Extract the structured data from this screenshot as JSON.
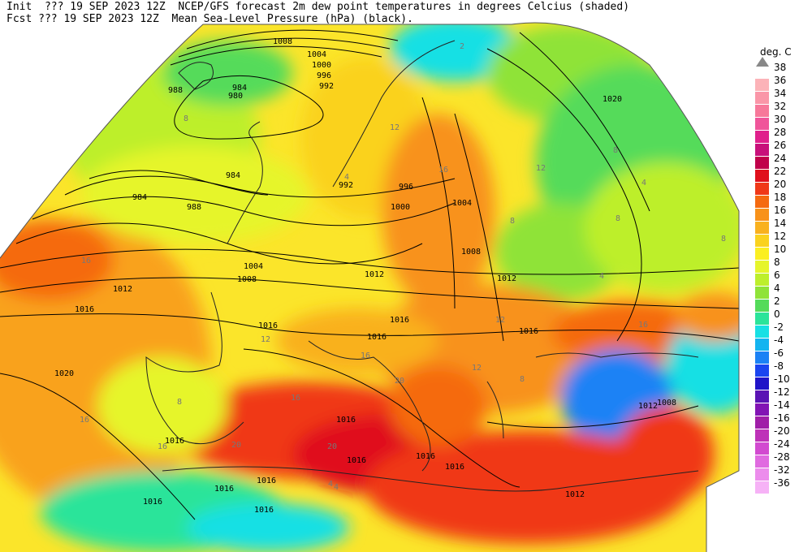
{
  "header": {
    "init_label": "Init  ??? 19 SEP 2023 12Z",
    "fcst_label": "Fcst ??? 19 SEP 2023 12Z",
    "title_line1": "NCEP/GFS forecast 2m dew point temperatures in degrees Celcius (shaded)",
    "title_line2": "Mean Sea-Level Pressure (hPa) (black)."
  },
  "legend": {
    "unit": "deg. C",
    "levels": [
      {
        "label": "38",
        "color": ""
      },
      {
        "label": "36",
        "color": "#fcb3b8"
      },
      {
        "label": "34",
        "color": "#fa96a8"
      },
      {
        "label": "32",
        "color": "#f7789a"
      },
      {
        "label": "30",
        "color": "#f0559a"
      },
      {
        "label": "28",
        "color": "#e0208c"
      },
      {
        "label": "26",
        "color": "#c8107a"
      },
      {
        "label": "24",
        "color": "#c0004a"
      },
      {
        "label": "22",
        "color": "#e0101c"
      },
      {
        "label": "20",
        "color": "#f03818"
      },
      {
        "label": "18",
        "color": "#f56a10"
      },
      {
        "label": "16",
        "color": "#f8921a"
      },
      {
        "label": "14",
        "color": "#f9b11e"
      },
      {
        "label": "12",
        "color": "#fad21e"
      },
      {
        "label": "10",
        "color": "#fbef22"
      },
      {
        "label": "8",
        "color": "#e6f52c"
      },
      {
        "label": "6",
        "color": "#bdef2c"
      },
      {
        "label": "4",
        "color": "#8fe338"
      },
      {
        "label": "2",
        "color": "#54db5a"
      },
      {
        "label": "0",
        "color": "#2be49a"
      },
      {
        "label": "-2",
        "color": "#18e0e4"
      },
      {
        "label": "-4",
        "color": "#14b4f0"
      },
      {
        "label": "-6",
        "color": "#1b82f5"
      },
      {
        "label": "-8",
        "color": "#1a45f0"
      },
      {
        "label": "-10",
        "color": "#2014c8"
      },
      {
        "label": "-12",
        "color": "#5a14b4"
      },
      {
        "label": "-14",
        "color": "#8214b4"
      },
      {
        "label": "-16",
        "color": "#a01ea8"
      },
      {
        "label": "-20",
        "color": "#be32b8"
      },
      {
        "label": "-24",
        "color": "#d24ad0"
      },
      {
        "label": "-28",
        "color": "#e06ae0"
      },
      {
        "label": "-32",
        "color": "#ec8cec"
      },
      {
        "label": "-36",
        "color": "#f6b2f6"
      }
    ]
  },
  "isobar_labels": [
    "1008",
    "1004",
    "1000",
    "996",
    "992",
    "988",
    "984",
    "980",
    "984",
    "988",
    "984",
    "992",
    "996",
    "1000",
    "1004",
    "1008",
    "1012",
    "1016",
    "1020",
    "1004",
    "1008",
    "1012",
    "1016",
    "1020",
    "1016",
    "1016",
    "1016",
    "1016",
    "1016",
    "1016",
    "1012",
    "1016",
    "1012",
    "1008",
    "1016",
    "1016",
    "1016",
    "1016",
    "1016",
    "1012"
  ],
  "dewpoint_labels": [
    "16",
    "12",
    "8",
    "8",
    "4",
    "4",
    "12",
    "16",
    "8",
    "12",
    "8",
    "4",
    "16",
    "16",
    "20",
    "16",
    "20",
    "16",
    "12",
    "8",
    "4",
    "8",
    "16",
    "20",
    "12",
    "8",
    "4",
    "2"
  ]
}
